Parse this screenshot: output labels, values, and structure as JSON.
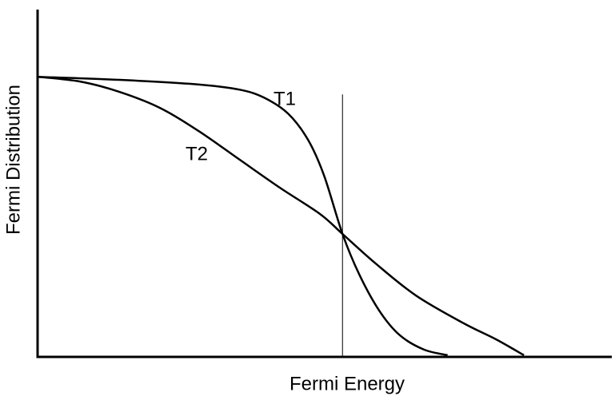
{
  "chart_data": {
    "type": "line",
    "x_label": "Fermi Energy",
    "y_label": "Fermi Distribution",
    "xlim": [
      0,
      1
    ],
    "ylim": [
      0,
      1.24
    ],
    "color": "#000000",
    "vline": {
      "x": 0.531,
      "ymax": 0.937
    },
    "series": [
      {
        "name": "T1",
        "color": "#000000",
        "x": [
          0,
          0.143,
          0.283,
          0.352,
          0.394,
          0.436,
          0.471,
          0.499,
          0.531,
          0.561,
          0.596,
          0.631,
          0.673,
          0.714
        ],
        "values": [
          1.0,
          0.989,
          0.972,
          0.954,
          0.926,
          0.869,
          0.775,
          0.647,
          0.439,
          0.291,
          0.162,
          0.077,
          0.026,
          0.006
        ]
      },
      {
        "name": "T2",
        "color": "#000000",
        "x": [
          0,
          0.074,
          0.143,
          0.213,
          0.283,
          0.352,
          0.422,
          0.492,
          0.531,
          0.589,
          0.659,
          0.742,
          0.798,
          0.847
        ],
        "values": [
          1.0,
          0.983,
          0.946,
          0.889,
          0.803,
          0.704,
          0.604,
          0.51,
          0.439,
          0.333,
          0.219,
          0.12,
          0.063,
          0.006
        ]
      }
    ]
  }
}
